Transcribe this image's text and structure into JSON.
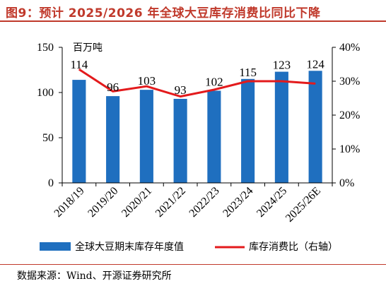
{
  "title": "图9：预计 2025/2026 年全球大豆库存消费比同比下降",
  "unit_label": "百万吨",
  "source": "数据来源：Wind、开源证券研究所",
  "colors": {
    "bar": "#1F6FBF",
    "line": "#E31A1C",
    "accent": "#C0392B"
  },
  "chart_data": {
    "type": "bar",
    "categories": [
      "2018/19",
      "2019/20",
      "2020/21",
      "2021/22",
      "2022/23",
      "2023/24",
      "2024/25",
      "2025/26E"
    ],
    "series": [
      {
        "name": "全球大豆期末库存年度值",
        "type": "bar",
        "axis": "left",
        "values": [
          114,
          96,
          103,
          93,
          102,
          115,
          123,
          124
        ]
      },
      {
        "name": "库存消费比（右轴）",
        "type": "line",
        "axis": "right",
        "values": [
          33.5,
          27.0,
          28.5,
          25.5,
          27.5,
          30.0,
          30.0,
          29.3
        ]
      }
    ],
    "left_axis": {
      "ylim": [
        0,
        150
      ],
      "ticks": [
        "0",
        "50",
        "100",
        "150"
      ]
    },
    "right_axis": {
      "ylim": [
        0,
        40
      ],
      "ticks": [
        "0%",
        "10%",
        "20%",
        "30%",
        "40%"
      ]
    },
    "data_labels": [
      "114",
      "96",
      "103",
      "93",
      "102",
      "115",
      "123",
      "124"
    ],
    "legend_position": "bottom"
  }
}
